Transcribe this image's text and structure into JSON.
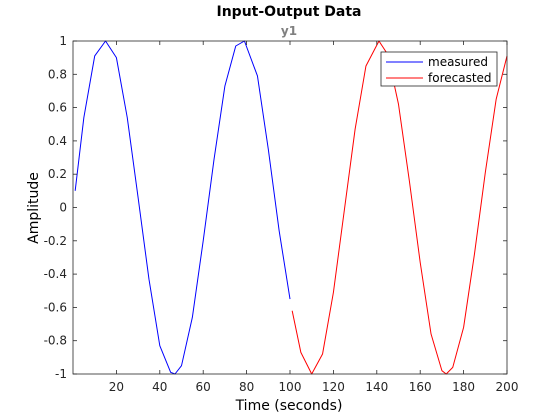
{
  "chart_data": {
    "type": "line",
    "title": "Input-Output Data",
    "subtitle": "y1",
    "xlabel": "Time (seconds)",
    "ylabel": "Amplitude",
    "xlim": [
      0,
      200
    ],
    "ylim": [
      -1,
      1
    ],
    "xticks": [
      20,
      40,
      60,
      80,
      100,
      120,
      140,
      160,
      180,
      200
    ],
    "yticks": [
      -1,
      -0.8,
      -0.6,
      -0.4,
      -0.2,
      0,
      0.2,
      0.4,
      0.6,
      0.8,
      1
    ],
    "xtick_labels": [
      "20",
      "40",
      "60",
      "80",
      "100",
      "120",
      "140",
      "160",
      "180",
      "200"
    ],
    "ytick_labels": [
      "-1",
      "-0.8",
      "-0.6",
      "-0.4",
      "-0.2",
      "0",
      "0.2",
      "0.4",
      "0.6",
      "0.8",
      "1"
    ],
    "grid": false,
    "legend_position": "top-right",
    "series": [
      {
        "name": "measured",
        "color": "#0000ff",
        "x": [
          1,
          5,
          10,
          15,
          20,
          25,
          30,
          35,
          40,
          45,
          47,
          50,
          55,
          60,
          65,
          70,
          75,
          79,
          85,
          90,
          95,
          100
        ],
        "y": [
          0.1,
          0.54,
          0.91,
          1.0,
          0.9,
          0.54,
          0.06,
          -0.43,
          -0.83,
          -0.99,
          -1.0,
          -0.95,
          -0.66,
          -0.2,
          0.29,
          0.73,
          0.97,
          1.0,
          0.79,
          0.35,
          -0.14,
          -0.55
        ]
      },
      {
        "name": "forecasted",
        "color": "#ff0000",
        "x": [
          101,
          105,
          110,
          115,
          120,
          125,
          130,
          135,
          141,
          145,
          150,
          155,
          160,
          165,
          170,
          172,
          175,
          180,
          185,
          190,
          195,
          200
        ],
        "y": [
          -0.62,
          -0.87,
          -1.0,
          -0.88,
          -0.51,
          -0.02,
          0.47,
          0.85,
          1.0,
          0.92,
          0.62,
          0.16,
          -0.33,
          -0.76,
          -0.98,
          -1.0,
          -0.96,
          -0.72,
          -0.28,
          0.21,
          0.65,
          0.91
        ]
      }
    ]
  }
}
